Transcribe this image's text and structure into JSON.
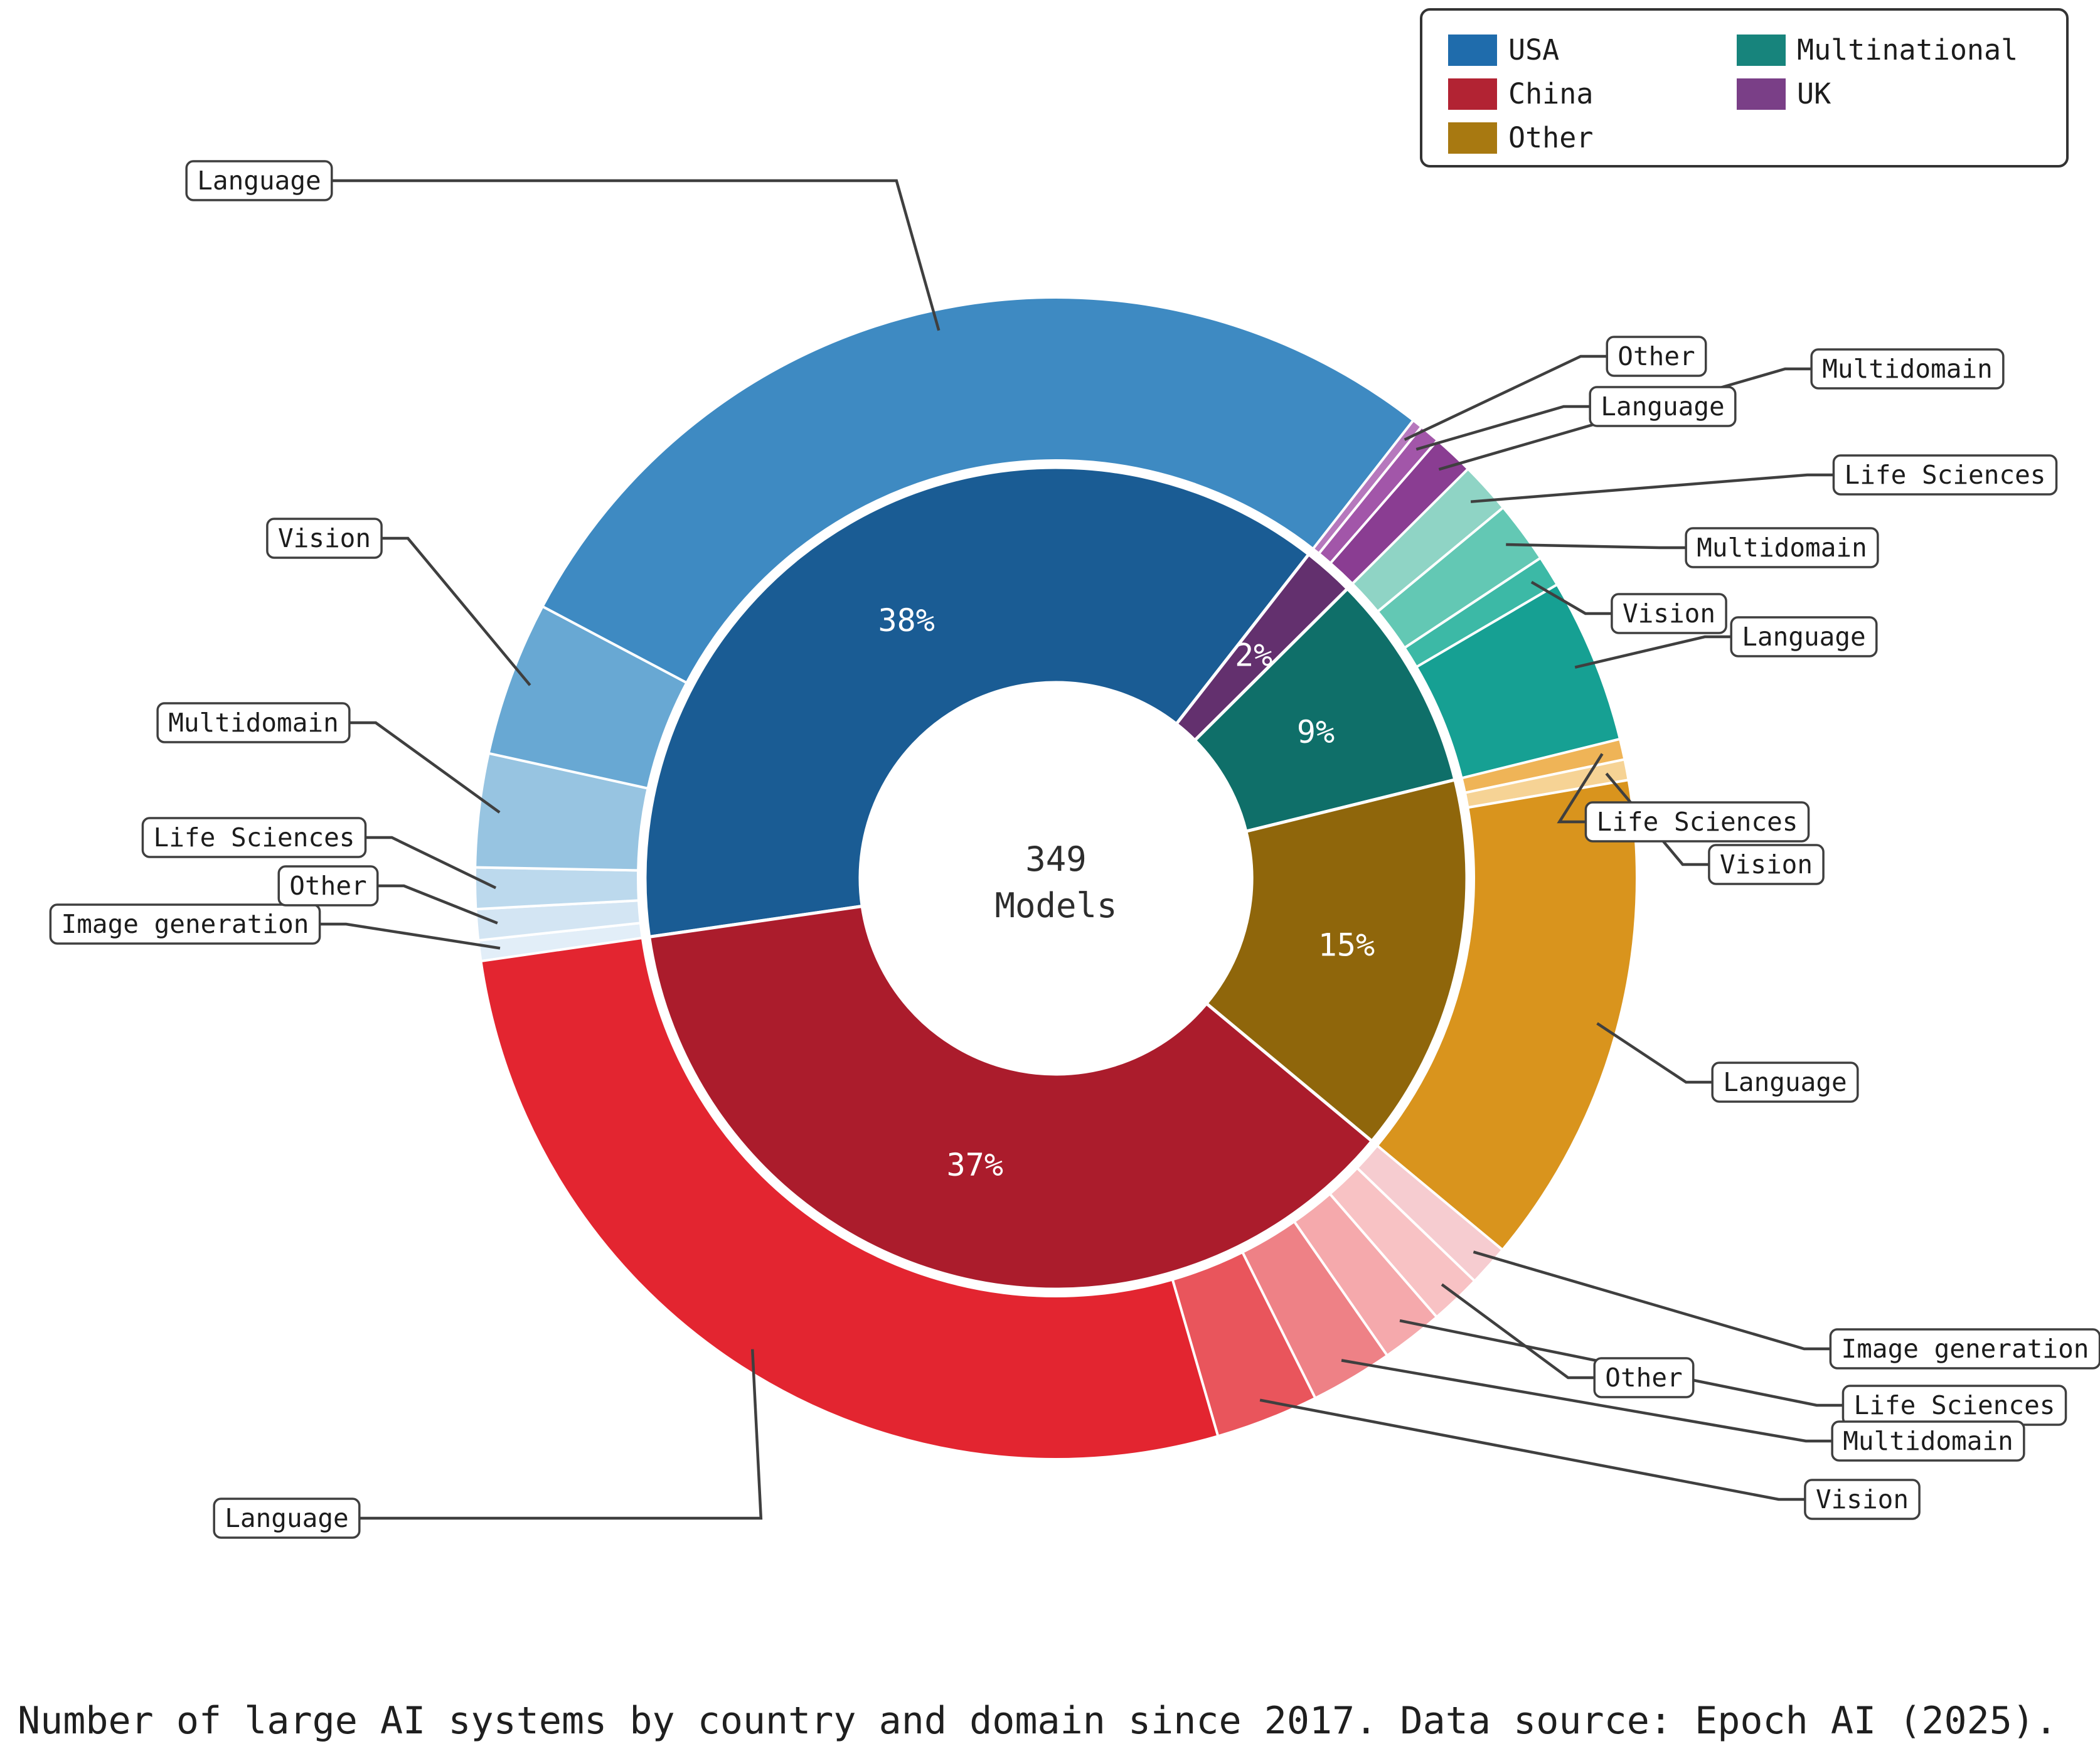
{
  "caption": "Number of large AI systems by country and domain since 2017. Data source: Epoch AI (2025).",
  "center": {
    "value": "349",
    "label": "Models"
  },
  "legend": {
    "items": [
      {
        "label": "USA",
        "color": "#1f6cac"
      },
      {
        "label": "China",
        "color": "#b22333"
      },
      {
        "label": "Other",
        "color": "#a87911"
      },
      {
        "label": "Multinational",
        "color": "#17847c"
      },
      {
        "label": "UK",
        "color": "#7a3f87"
      }
    ]
  },
  "chart_data": {
    "type": "pie",
    "subtype": "sunburst-donut",
    "title": "Number of large AI systems by country and domain since 2017",
    "total": 349,
    "total_units": "Models",
    "rings": [
      "country",
      "domain"
    ],
    "legend_position": "top-right",
    "countries": [
      {
        "name": "USA",
        "percent_label": "38%",
        "count": 132,
        "inner_color": "#1a5c94",
        "segments": [
          {
            "domain": "Image generation",
            "count": 2,
            "color": "#e2eef8"
          },
          {
            "domain": "Other",
            "count": 3,
            "color": "#d3e5f3"
          },
          {
            "domain": "Life Sciences",
            "count": 4,
            "color": "#bcd9ed"
          },
          {
            "domain": "Multidomain",
            "count": 11,
            "color": "#97c4e1"
          },
          {
            "domain": "Vision",
            "count": 15,
            "color": "#68a8d3"
          },
          {
            "domain": "Language",
            "count": 97,
            "color": "#3e8ac2"
          }
        ]
      },
      {
        "name": "UK",
        "percent_label": "2%",
        "count": 7,
        "inner_color": "#63306e",
        "segments": [
          {
            "domain": "Other",
            "count": 1,
            "color": "#b678bd"
          },
          {
            "domain": "Language",
            "count": 2,
            "color": "#a256a9"
          },
          {
            "domain": "Multidomain",
            "count": 4,
            "color": "#8a3d92"
          }
        ]
      },
      {
        "name": "Multinational",
        "percent_label": "9%",
        "count": 30,
        "inner_color": "#0f6f69",
        "segments": [
          {
            "domain": "Life Sciences",
            "count": 5,
            "color": "#8fd4c5"
          },
          {
            "domain": "Multidomain",
            "count": 6,
            "color": "#63c8b4"
          },
          {
            "domain": "Vision",
            "count": 3,
            "color": "#3cb9a6"
          },
          {
            "domain": "Language",
            "count": 16,
            "color": "#16a093"
          }
        ]
      },
      {
        "name": "Other",
        "percent_label": "15%",
        "count": 52,
        "inner_color": "#8f660b",
        "segments": [
          {
            "domain": "Life Sciences",
            "count": 2,
            "color": "#efb457"
          },
          {
            "domain": "Vision",
            "count": 2,
            "color": "#f6d395"
          },
          {
            "domain": "Language",
            "count": 48,
            "color": "#d9941d"
          }
        ]
      },
      {
        "name": "China",
        "percent_label": "37%",
        "count": 128,
        "inner_color": "#ab1c2c",
        "segments": [
          {
            "domain": "Image generation",
            "count": 4,
            "color": "#f6ccd0"
          },
          {
            "domain": "Other",
            "count": 5,
            "color": "#f8c2c4"
          },
          {
            "domain": "Life Sciences",
            "count": 6,
            "color": "#f5a9ac"
          },
          {
            "domain": "Multidomain",
            "count": 8,
            "color": "#ee8186"
          },
          {
            "domain": "Vision",
            "count": 10,
            "color": "#e9555c"
          },
          {
            "domain": "Language",
            "count": 95,
            "color": "#e32530"
          }
        ]
      }
    ]
  }
}
